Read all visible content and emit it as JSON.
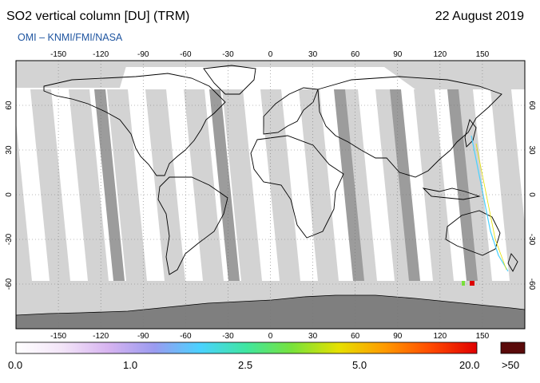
{
  "header": {
    "title": "SO2 vertical column [DU] (TRM)",
    "date": "22 August 2019",
    "subtitle": "OMI  –  KNMI/FMI/NASA"
  },
  "map": {
    "lon_ticks": [
      "-150",
      "-120",
      "-90",
      "-60",
      "-30",
      "0",
      "30",
      "60",
      "90",
      "120",
      "150"
    ],
    "lat_ticks": [
      "60",
      "30",
      "0",
      "-30",
      "-60"
    ],
    "colors": {
      "ocean": "#ffffff",
      "no_data": "#d3d3d3",
      "swath_gap": "#9c9c9c",
      "antarctica": "#7f7f7f",
      "coastline": "#000000"
    }
  },
  "colorbar": {
    "labels": [
      "0.0",
      "1.0",
      "2.5",
      "5.0",
      "20.0"
    ],
    "overflow_label": ">50",
    "overflow_color": "#5a0a0a",
    "gradient_stops": [
      "#ffffff",
      "#f3e5f8",
      "#d7b4f0",
      "#9b9bf0",
      "#4ad2ff",
      "#3fe6a0",
      "#79e23a",
      "#e6e000",
      "#ff9a00",
      "#ff4a00",
      "#e00000"
    ]
  }
}
